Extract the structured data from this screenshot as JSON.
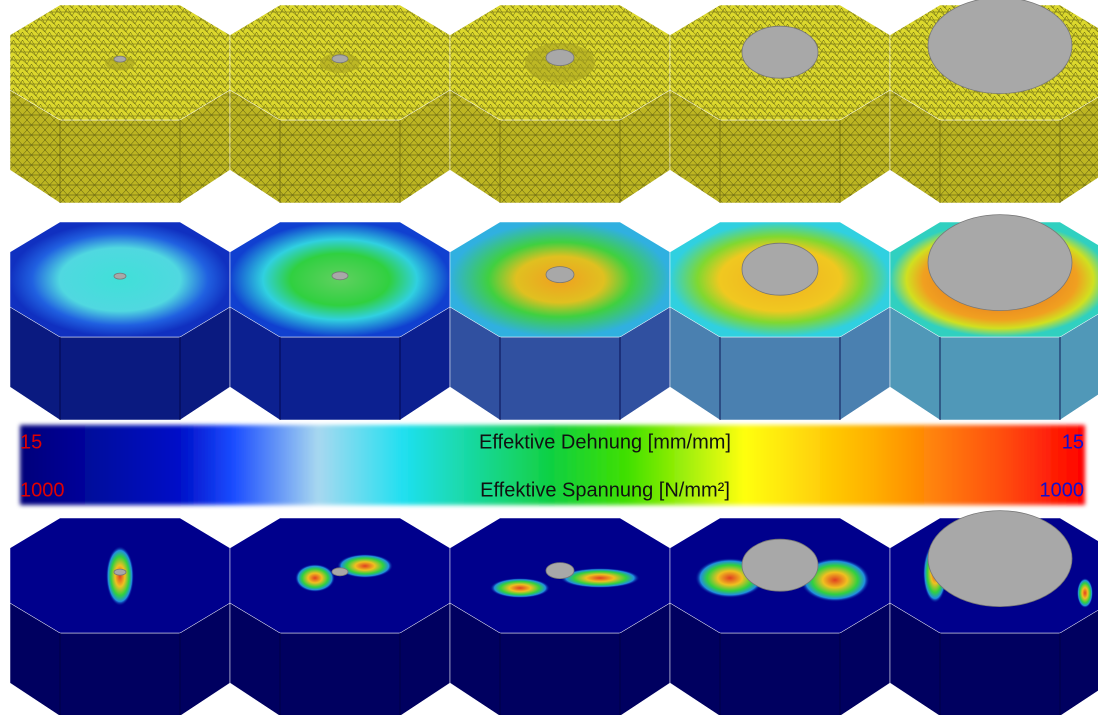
{
  "colorbar": {
    "strain": {
      "min_label": "15",
      "title": "Effektive Dehnung [mm/mm]",
      "max_label": "15"
    },
    "stress": {
      "min_label": "1000",
      "title": "Effektive Spannung [N/mm²]",
      "max_label": "1000"
    }
  }
}
